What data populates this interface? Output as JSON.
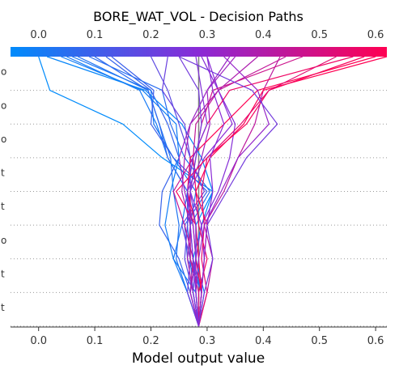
{
  "chart_data": {
    "type": "line",
    "title": "BORE_WAT_VOL - Decision Paths",
    "xlabel": "Model output value",
    "x_ticks": [
      "0.0",
      "0.1",
      "0.2",
      "0.3",
      "0.4",
      "0.5",
      "0.6"
    ],
    "xlim": [
      -0.05,
      0.62
    ],
    "base_value": 0.285,
    "feature_labels": [
      "o",
      "o",
      "o",
      "t",
      "t",
      "o",
      "t",
      "t"
    ],
    "colorbar": {
      "min": 0.0,
      "max": 0.6,
      "low_color": "#008bfb",
      "high_color": "#ff0052"
    },
    "paths": [
      [
        0.285,
        0.27,
        0.25,
        0.215,
        0.22,
        0.25,
        0.23,
        0.2,
        0.12
      ],
      [
        0.285,
        0.275,
        0.27,
        0.27,
        0.28,
        0.24,
        0.205,
        0.2,
        0.06
      ],
      [
        0.285,
        0.265,
        0.24,
        0.255,
        0.265,
        0.23,
        0.21,
        0.18,
        0.05
      ],
      [
        0.285,
        0.265,
        0.245,
        0.25,
        0.24,
        0.235,
        0.215,
        0.195,
        0.07
      ],
      [
        0.285,
        0.28,
        0.275,
        0.29,
        0.31,
        0.29,
        0.255,
        0.19,
        0.015
      ],
      [
        0.285,
        0.29,
        0.27,
        0.265,
        0.265,
        0.23,
        0.215,
        0.195,
        0.1
      ],
      [
        0.285,
        0.295,
        0.28,
        0.28,
        0.31,
        0.22,
        0.15,
        0.02,
        0.0
      ],
      [
        0.285,
        0.29,
        0.265,
        0.26,
        0.3,
        0.24,
        0.2,
        0.205,
        0.13
      ],
      [
        0.285,
        0.29,
        0.275,
        0.27,
        0.305,
        0.26,
        0.235,
        0.22,
        0.09
      ],
      [
        0.285,
        0.28,
        0.24,
        0.225,
        0.235,
        0.25,
        0.245,
        0.185,
        0.04
      ],
      [
        0.285,
        0.275,
        0.26,
        0.265,
        0.27,
        0.27,
        0.25,
        0.23,
        0.2
      ],
      [
        0.285,
        0.29,
        0.295,
        0.29,
        0.32,
        0.34,
        0.35,
        0.32,
        0.29
      ],
      [
        0.285,
        0.265,
        0.27,
        0.255,
        0.295,
        0.27,
        0.26,
        0.22,
        0.23
      ],
      [
        0.285,
        0.3,
        0.31,
        0.295,
        0.33,
        0.355,
        0.385,
        0.4,
        0.43
      ],
      [
        0.285,
        0.27,
        0.28,
        0.29,
        0.27,
        0.295,
        0.345,
        0.32,
        0.3
      ],
      [
        0.285,
        0.28,
        0.28,
        0.275,
        0.265,
        0.29,
        0.305,
        0.3,
        0.35
      ],
      [
        0.285,
        0.285,
        0.3,
        0.285,
        0.28,
        0.275,
        0.3,
        0.34,
        0.56
      ],
      [
        0.285,
        0.29,
        0.285,
        0.28,
        0.265,
        0.27,
        0.33,
        0.39,
        0.6
      ],
      [
        0.285,
        0.29,
        0.295,
        0.3,
        0.28,
        0.305,
        0.365,
        0.4,
        0.62
      ],
      [
        0.285,
        0.29,
        0.28,
        0.28,
        0.245,
        0.3,
        0.37,
        0.41,
        0.58
      ],
      [
        0.285,
        0.3,
        0.29,
        0.295,
        0.29,
        0.3,
        0.36,
        0.41,
        0.53
      ],
      [
        0.285,
        0.285,
        0.27,
        0.27,
        0.27,
        0.28,
        0.29,
        0.31,
        0.47
      ],
      [
        0.285,
        0.27,
        0.275,
        0.26,
        0.24,
        0.275,
        0.28,
        0.32,
        0.44
      ],
      [
        0.285,
        0.275,
        0.265,
        0.27,
        0.255,
        0.26,
        0.27,
        0.32,
        0.39
      ],
      [
        0.285,
        0.27,
        0.28,
        0.275,
        0.26,
        0.25,
        0.27,
        0.3,
        0.34
      ],
      [
        0.285,
        0.28,
        0.285,
        0.295,
        0.325,
        0.355,
        0.41,
        0.39,
        0.33
      ],
      [
        0.285,
        0.295,
        0.31,
        0.3,
        0.335,
        0.37,
        0.425,
        0.38,
        0.25
      ],
      [
        0.285,
        0.275,
        0.28,
        0.28,
        0.27,
        0.28,
        0.29,
        0.285,
        0.25
      ],
      [
        0.285,
        0.28,
        0.275,
        0.27,
        0.265,
        0.275,
        0.3,
        0.29,
        0.28
      ],
      [
        0.285,
        0.29,
        0.295,
        0.3,
        0.31,
        0.305,
        0.33,
        0.31,
        0.3
      ]
    ]
  }
}
